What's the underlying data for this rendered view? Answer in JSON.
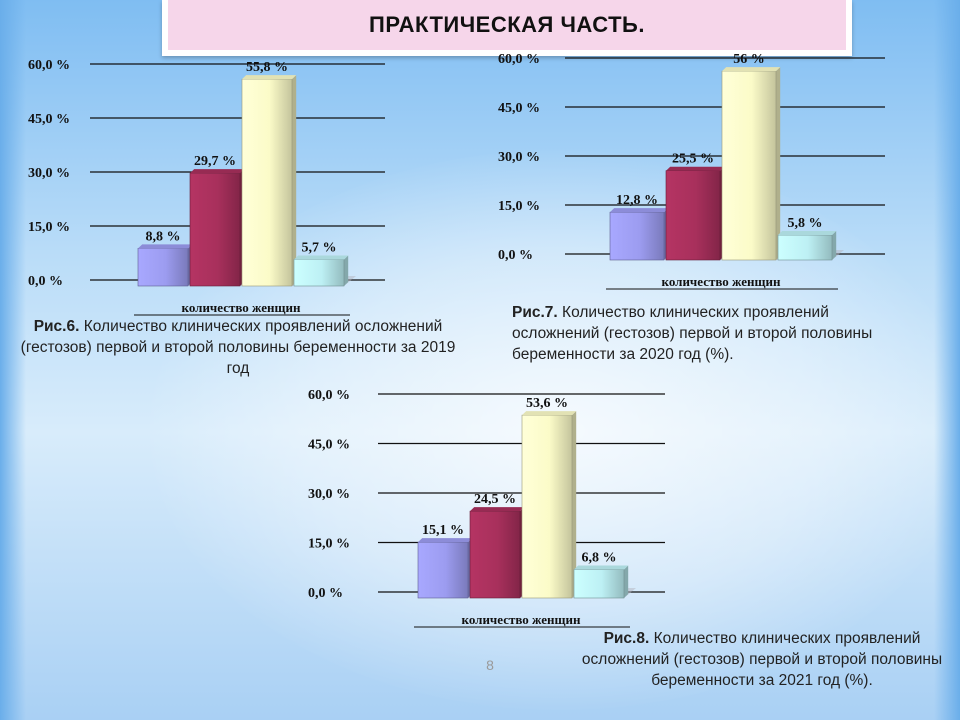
{
  "title": "ПРАКТИЧЕСКАЯ ЧАСТЬ.",
  "page_number": "8",
  "colors": {
    "bar1": "#9c9cf0",
    "bar2": "#a8305c",
    "bar3": "#fbfbc8",
    "bar4": "#bdf0f4",
    "title_box": "#f6d6ea"
  },
  "captions": [
    {
      "prefix": "Рис.6.",
      "text": " Количество клинических проявлений осложнений (гестозов) первой и второй половины беременности за 2019 год"
    },
    {
      "prefix": "Рис.7.",
      "text": " Количество клинических проявлений осложнений (гестозов) первой и второй половины беременности за 2020 год (%)."
    },
    {
      "prefix": "Рис.8.",
      "text": " Количество клинических проявлений осложнений (гестозов) первой и второй половины беременности за 2021 год (%)."
    }
  ],
  "chart_data": [
    {
      "type": "bar",
      "categories": [
        "количество женщин"
      ],
      "ylim": [
        0,
        60
      ],
      "yticks": [
        "0,0 %",
        "15,0 %",
        "30,0 %",
        "45,0 %",
        "60,0 %"
      ],
      "grid": true,
      "values": [
        8.8,
        29.7,
        55.8,
        5.7
      ],
      "labels": [
        "8,8 %",
        "29,7 %",
        "55,8 %",
        "5,7 %"
      ]
    },
    {
      "type": "bar",
      "categories": [
        "количество женщин"
      ],
      "ylim": [
        0,
        60
      ],
      "yticks": [
        "0,0 %",
        "15,0 %",
        "30,0 %",
        "45,0 %",
        "60,0 %"
      ],
      "grid": true,
      "values": [
        12.8,
        25.5,
        56,
        5.8
      ],
      "labels": [
        "12,8 %",
        "25,5 %",
        "56 %",
        "5,8 %"
      ]
    },
    {
      "type": "bar",
      "categories": [
        "количество женщин"
      ],
      "ylim": [
        0,
        60
      ],
      "yticks": [
        "0,0 %",
        "15,0 %",
        "30,0 %",
        "45,0 %",
        "60,0 %"
      ],
      "grid": true,
      "values": [
        15.1,
        24.5,
        53.6,
        6.8
      ],
      "labels": [
        "15,1 %",
        "24,5 %",
        "53,6 %",
        "6,8 %"
      ]
    }
  ]
}
